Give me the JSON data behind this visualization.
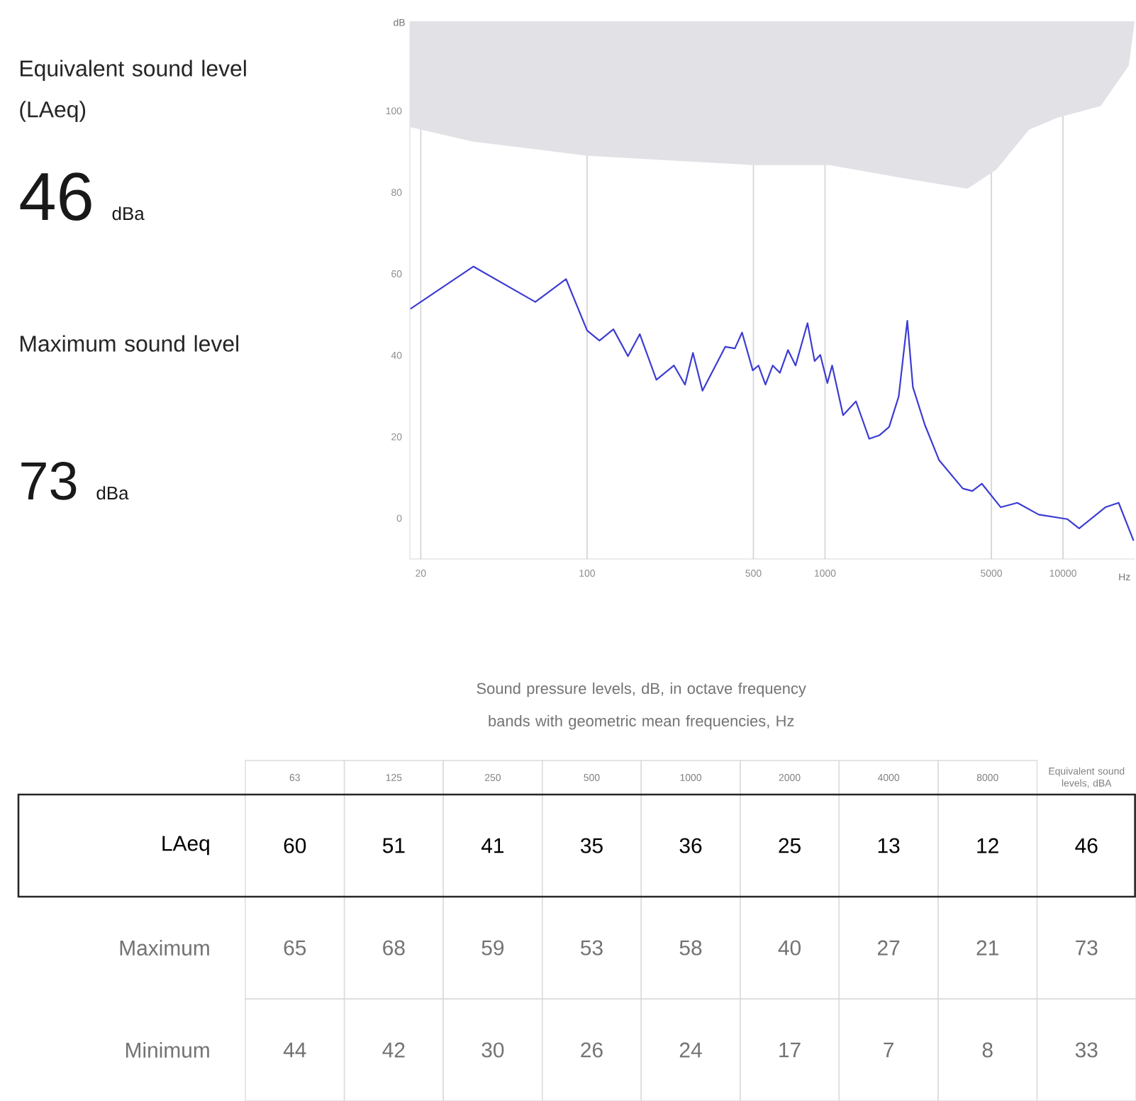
{
  "chart_data": [
    {
      "type": "other",
      "annotations": [
        "Equivalent sound level (LAeq)",
        "46",
        "dBa",
        "Maximum sound level",
        "73",
        "dBa"
      ]
    },
    {
      "type": "line",
      "xlabel": "Hz",
      "ylabel": "dB",
      "log": "x",
      "grid": "x",
      "xlim": [
        18,
        20000
      ],
      "ylim": [
        -10,
        122
      ],
      "xticks": [
        20,
        100,
        500,
        1000,
        5000,
        10000
      ],
      "yticks": [
        0,
        20,
        40,
        60,
        80,
        100
      ],
      "series": [
        {
          "type": "area",
          "color": "#e1e1e6",
          "x": [
            18.1,
            33,
            100,
            500,
            1045,
            1980,
            3970,
            5250,
            7200,
            9460,
            14400,
            18900,
            20000
          ],
          "values": [
            96,
            92.5,
            89,
            86.7,
            86.7,
            83.8,
            80.9,
            85.6,
            95.4,
            98.3,
            101.2,
            111.1,
            122
          ]
        },
        {
          "color": "#3c3cd2",
          "x": [
            18.1,
            33.3,
            60.6,
            81.6,
            100,
            112.7,
            129,
            148.5,
            166.6,
            195.6,
            231.9,
            257.9,
            278.6,
            305.5,
            381,
            418,
            448,
            497,
            525,
            562,
            603,
            646,
            699,
            752,
            844,
            904,
            955,
            1023,
            1071,
            1191,
            1349,
            1534,
            1695,
            1859,
            2040,
            2217,
            2340,
            2625,
            3013,
            3793,
            4159,
            4560,
            5476,
            6430,
            7907,
            10420,
            11690,
            15070,
            17140,
            19800
          ],
          "values": [
            51.4,
            61.8,
            53.1,
            58.7,
            46.1,
            43.6,
            46.4,
            39.8,
            45.2,
            34.0,
            37.5,
            32.8,
            40.6,
            31.3,
            42.1,
            41.7,
            45.6,
            36.3,
            37.5,
            32.8,
            37.5,
            35.7,
            41.3,
            37.5,
            47.9,
            38.6,
            40.1,
            33.2,
            37.5,
            25.3,
            28.7,
            19.5,
            20.4,
            22.4,
            29.9,
            48.5,
            32.2,
            23.0,
            14.3,
            7.3,
            6.7,
            8.5,
            2.7,
            3.8,
            0.9,
            -0.2,
            -2.5,
            2.7,
            3.8,
            -5.5
          ]
        }
      ]
    },
    {
      "type": "heatmap",
      "title": "Sound pressure levels, dB, in octave frequency bands with geometric mean frequencies, Hz",
      "categories": [
        "63",
        "125",
        "250",
        "500",
        "1000",
        "2000",
        "4000",
        "8000",
        "Equivalent sound levels, dBA"
      ],
      "data_labels": true,
      "y_categories": [
        "LAeq",
        "Maximum",
        "Minimum"
      ],
      "cells": [
        [
          60,
          51,
          41,
          35,
          36,
          25,
          13,
          12,
          46
        ],
        [
          65,
          68,
          59,
          53,
          58,
          40,
          27,
          21,
          73
        ],
        [
          44,
          42,
          30,
          26,
          24,
          17,
          7,
          8,
          33
        ]
      ]
    }
  ]
}
